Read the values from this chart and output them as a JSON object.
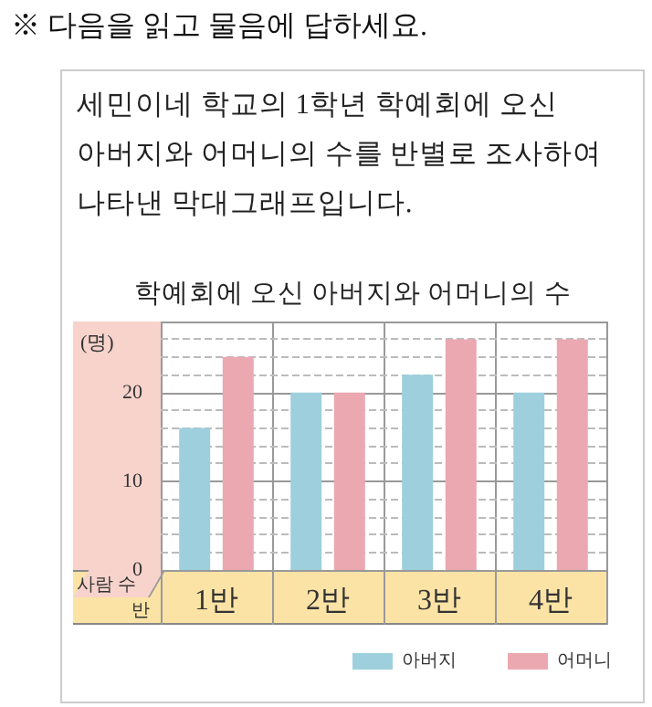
{
  "chart_data": {
    "type": "bar",
    "title": "학예회에 오신 아버지와 어머니의 수",
    "annotations": [
      "※ 다음을 읽고 물음에 답하세요.",
      "세민이네 학교의 1학년 학예회에 오신 아버지와 어머니의 수를 반별로 조사하여 나타낸 막대그래프입니다.",
      "(명)"
    ],
    "xlabel": "반",
    "ylabel": "사람 수",
    "categories": [
      "1반",
      "2반",
      "3반",
      "4반"
    ],
    "series": [
      {
        "name": "아버지",
        "color": "#9dd0dc",
        "values": [
          16,
          20,
          22,
          20
        ]
      },
      {
        "name": "어머니",
        "color": "#eba8b1",
        "values": [
          24,
          20,
          26,
          26
        ]
      }
    ],
    "ylim": [
      0,
      28
    ],
    "yticks": [
      0,
      {
        "value": 2,
        "label": null
      },
      {
        "value": 4,
        "label": null
      },
      {
        "value": 6,
        "label": null
      },
      {
        "value": 8,
        "label": null
      },
      10,
      {
        "value": 12,
        "label": null
      },
      {
        "value": 14,
        "label": null
      },
      {
        "value": 16,
        "label": null
      },
      {
        "value": 18,
        "label": null
      },
      20,
      {
        "value": 22,
        "label": null
      },
      {
        "value": 24,
        "label": null
      },
      {
        "value": 26,
        "label": null
      }
    ],
    "grid": "y",
    "legend": "bottom right"
  }
}
